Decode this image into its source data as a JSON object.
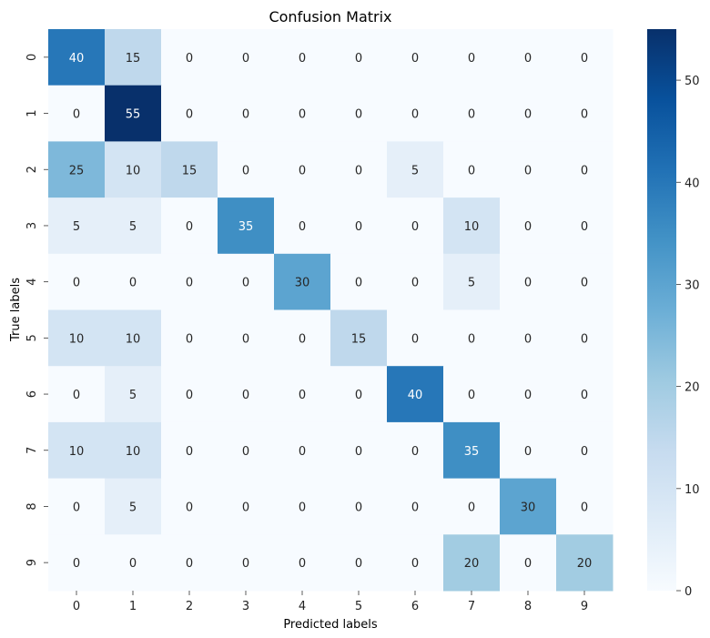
{
  "chart_data": {
    "type": "heatmap",
    "title": "Confusion Matrix",
    "xlabel": "Predicted labels",
    "ylabel": "True labels",
    "x_categories": [
      "0",
      "1",
      "2",
      "3",
      "4",
      "5",
      "6",
      "7",
      "8",
      "9"
    ],
    "y_categories": [
      "0",
      "1",
      "2",
      "3",
      "4",
      "5",
      "6",
      "7",
      "8",
      "9"
    ],
    "values": [
      [
        40,
        15,
        0,
        0,
        0,
        0,
        0,
        0,
        0,
        0
      ],
      [
        0,
        55,
        0,
        0,
        0,
        0,
        0,
        0,
        0,
        0
      ],
      [
        25,
        10,
        15,
        0,
        0,
        0,
        5,
        0,
        0,
        0
      ],
      [
        5,
        5,
        0,
        35,
        0,
        0,
        0,
        10,
        0,
        0
      ],
      [
        0,
        0,
        0,
        0,
        30,
        0,
        0,
        5,
        0,
        0
      ],
      [
        10,
        10,
        0,
        0,
        0,
        15,
        0,
        0,
        0,
        0
      ],
      [
        0,
        5,
        0,
        0,
        0,
        0,
        40,
        0,
        0,
        0
      ],
      [
        10,
        10,
        0,
        0,
        0,
        0,
        0,
        35,
        0,
        0
      ],
      [
        0,
        5,
        0,
        0,
        0,
        0,
        0,
        0,
        30,
        0
      ],
      [
        0,
        0,
        0,
        0,
        0,
        0,
        0,
        20,
        0,
        20
      ]
    ],
    "colorbar": {
      "vmin": 0,
      "vmax": 55,
      "ticks": [
        0,
        10,
        20,
        30,
        40,
        50
      ]
    },
    "colormap": "Blues",
    "colormap_low": "#f7fbff",
    "colormap_high": "#08306b"
  }
}
